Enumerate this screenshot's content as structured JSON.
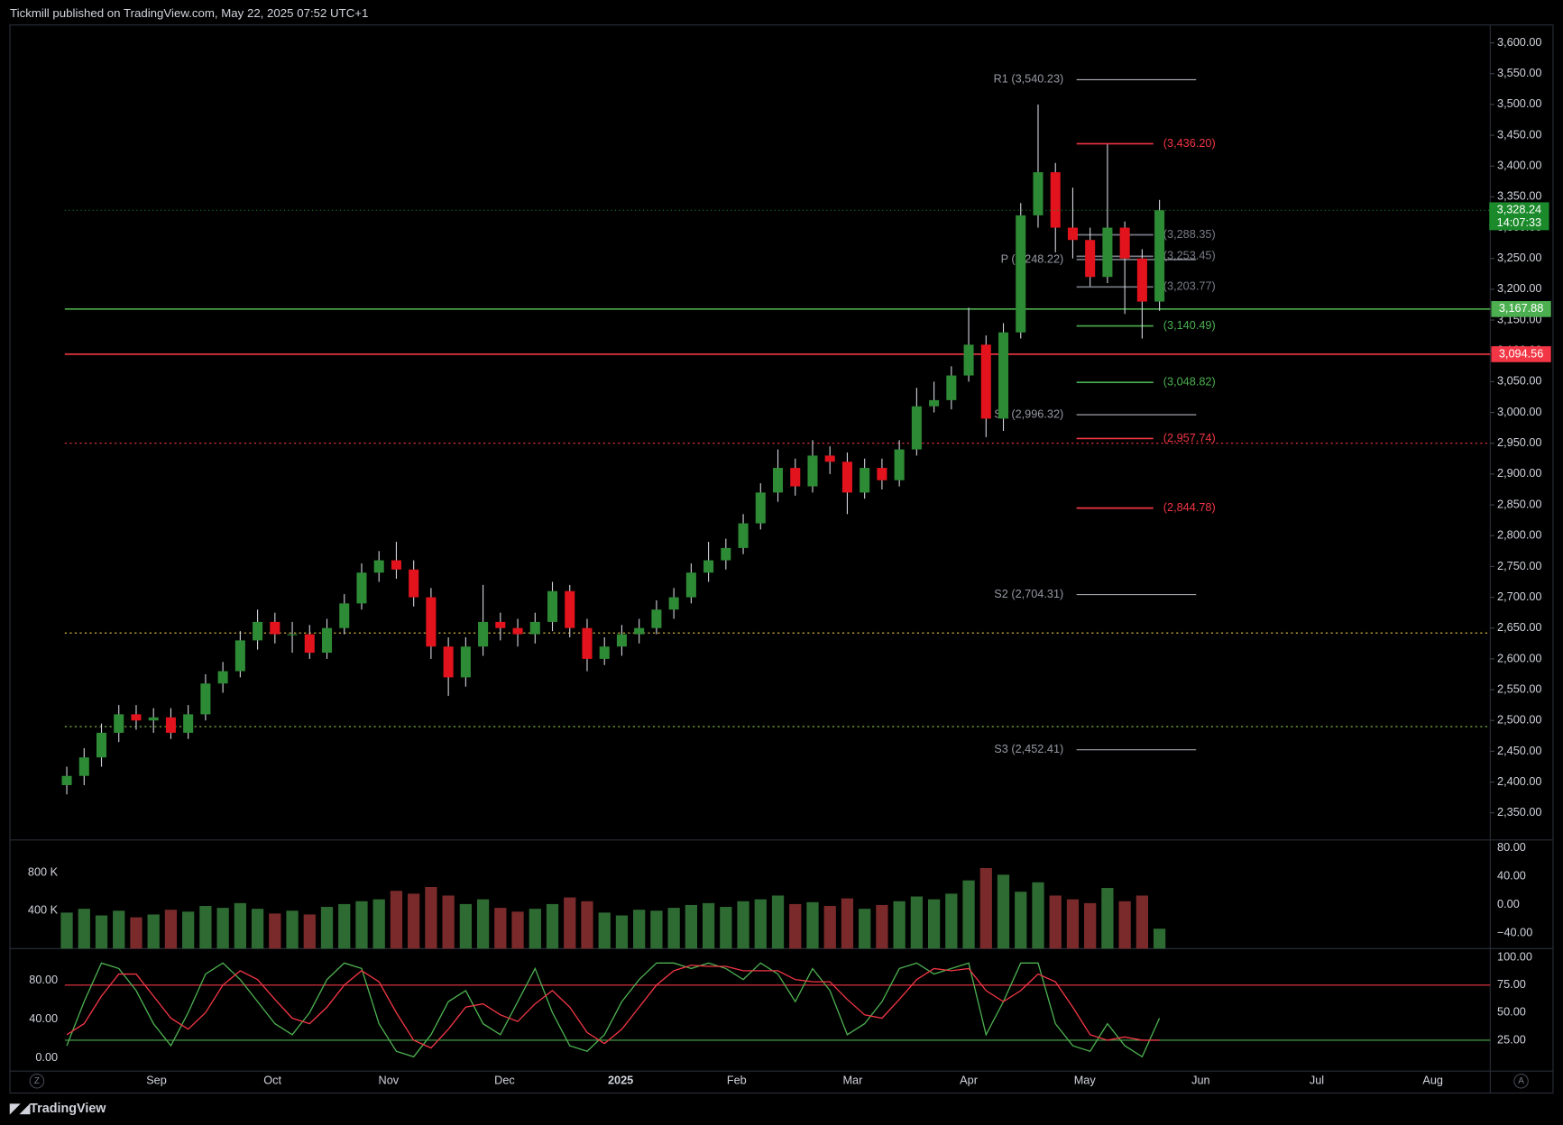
{
  "header": {
    "text": "Tickmill published on TradingView.com, May 22, 2025 07:52 UTC+1"
  },
  "footer": {
    "brand": "TradingView",
    "left_button": "Z",
    "right_button": "A"
  },
  "chart_data": [
    {
      "type": "candlestick",
      "x_axis_labels": [
        "Sep",
        "Oct",
        "Nov",
        "Dec",
        "2025",
        "Feb",
        "Mar",
        "Apr",
        "May",
        "Jun",
        "Jul",
        "Aug"
      ],
      "open": [
        2395,
        2410,
        2440,
        2480,
        2510,
        2500,
        2505,
        2480,
        2510,
        2560,
        2580,
        2630,
        2660,
        2640,
        2640,
        2610,
        2650,
        2690,
        2740,
        2760,
        2745,
        2700,
        2620,
        2570,
        2620,
        2660,
        2650,
        2640,
        2660,
        2710,
        2650,
        2600,
        2620,
        2640,
        2650,
        2680,
        2700,
        2740,
        2760,
        2780,
        2820,
        2870,
        2910,
        2880,
        2930,
        2920,
        2870,
        2910,
        2890,
        2940,
        3010,
        3020,
        3060,
        3110,
        2990,
        3130,
        3320,
        3390,
        3300,
        3280,
        3220,
        3300,
        3250,
        3180
      ],
      "high": [
        2425,
        2455,
        2495,
        2525,
        2525,
        2520,
        2520,
        2525,
        2575,
        2595,
        2645,
        2680,
        2675,
        2660,
        2655,
        2665,
        2705,
        2755,
        2775,
        2790,
        2760,
        2715,
        2635,
        2635,
        2720,
        2675,
        2665,
        2675,
        2725,
        2720,
        2665,
        2635,
        2655,
        2665,
        2695,
        2715,
        2755,
        2790,
        2795,
        2835,
        2885,
        2940,
        2925,
        2955,
        2945,
        2935,
        2925,
        2925,
        2955,
        3040,
        3050,
        3075,
        3170,
        3125,
        3145,
        3340,
        3500,
        3405,
        3365,
        3300,
        3435,
        3310,
        3265,
        3345
      ],
      "low": [
        2380,
        2395,
        2425,
        2465,
        2485,
        2480,
        2470,
        2470,
        2500,
        2545,
        2570,
        2615,
        2625,
        2610,
        2600,
        2600,
        2640,
        2680,
        2725,
        2730,
        2685,
        2600,
        2540,
        2555,
        2605,
        2630,
        2620,
        2625,
        2645,
        2635,
        2580,
        2590,
        2605,
        2625,
        2640,
        2665,
        2690,
        2725,
        2745,
        2770,
        2810,
        2855,
        2865,
        2870,
        2900,
        2835,
        2860,
        2875,
        2880,
        2930,
        3000,
        3005,
        3050,
        2960,
        2970,
        3120,
        3300,
        3260,
        3250,
        3205,
        3210,
        3160,
        3120,
        3165
      ],
      "close": [
        2410,
        2440,
        2480,
        2510,
        2500,
        2505,
        2480,
        2510,
        2560,
        2580,
        2630,
        2660,
        2640,
        2640,
        2610,
        2650,
        2690,
        2740,
        2760,
        2745,
        2700,
        2620,
        2570,
        2620,
        2660,
        2650,
        2640,
        2660,
        2710,
        2650,
        2600,
        2620,
        2640,
        2650,
        2680,
        2700,
        2740,
        2760,
        2780,
        2820,
        2870,
        2910,
        2880,
        2930,
        2920,
        2870,
        2910,
        2890,
        2940,
        3010,
        3020,
        3060,
        3110,
        2990,
        3130,
        3320,
        3390,
        3300,
        3280,
        3220,
        3300,
        3250,
        3180,
        3328.24
      ],
      "up_color": "#2e8b35",
      "down_color": "#e3131d",
      "ylim": [
        2306,
        3629
      ],
      "yticks": [
        {
          "value": 2350,
          "label": "2,350.00"
        },
        {
          "value": 2400,
          "label": "2,400.00"
        },
        {
          "value": 2450,
          "label": "2,450.00"
        },
        {
          "value": 2500,
          "label": "2,500.00"
        },
        {
          "value": 2550,
          "label": "2,550.00"
        },
        {
          "value": 2600,
          "label": "2,600.00"
        },
        {
          "value": 2650,
          "label": "2,650.00"
        },
        {
          "value": 2700,
          "label": "2,700.00"
        },
        {
          "value": 2750,
          "label": "2,750.00"
        },
        {
          "value": 2800,
          "label": "2,800.00"
        },
        {
          "value": 2850,
          "label": "2,850.00"
        },
        {
          "value": 2900,
          "label": "2,900.00"
        },
        {
          "value": 2950,
          "label": "2,950.00"
        },
        {
          "value": 3000,
          "label": "3,000.00"
        },
        {
          "value": 3050,
          "label": "3,050.00"
        },
        {
          "value": 3100,
          "label": "3,100.00"
        },
        {
          "value": 3150,
          "label": "3,150.00"
        },
        {
          "value": 3200,
          "label": "3,200.00"
        },
        {
          "value": 3250,
          "label": "3,250.00"
        },
        {
          "value": 3300,
          "label": "3,300.00"
        },
        {
          "value": 3350,
          "label": "3,350.00"
        },
        {
          "value": 3400,
          "label": "3,400.00"
        },
        {
          "value": 3450,
          "label": "3,450.00"
        },
        {
          "value": 3500,
          "label": "3,500.00"
        },
        {
          "value": 3550,
          "label": "3,550.00"
        },
        {
          "value": 3600,
          "label": "3,600.00"
        }
      ],
      "pivot_levels": [
        {
          "value": 3540.23,
          "label": "R1 (3,540.23)"
        },
        {
          "value": 3248.22,
          "label": "P (3,248.22)"
        },
        {
          "value": 2996.32,
          "label": "S1 (2,996.32)"
        },
        {
          "value": 2704.31,
          "label": "S2 (2,704.31)"
        },
        {
          "value": 2452.41,
          "label": "S3 (2,452.41)"
        }
      ],
      "target_levels": [
        {
          "value": 3436.2,
          "label": "(3,436.20)",
          "color": "#f23645"
        },
        {
          "value": 3288.35,
          "label": "(3,288.35)",
          "color": "#787b86"
        },
        {
          "value": 3253.45,
          "label": "(3,253.45)",
          "color": "#787b86"
        },
        {
          "value": 3203.77,
          "label": "(3,203.77)",
          "color": "#787b86"
        },
        {
          "value": 3140.49,
          "label": "(3,140.49)",
          "color": "#4caf50"
        },
        {
          "value": 3048.82,
          "label": "(3,048.82)",
          "color": "#4caf50"
        },
        {
          "value": 2957.74,
          "label": "(2,957.74)",
          "color": "#f23645"
        },
        {
          "value": 2844.78,
          "label": "(2,844.78)",
          "color": "#f23645"
        }
      ],
      "hlines": [
        {
          "value": 3167.88,
          "label": "3,167.88",
          "color": "#4caf50"
        },
        {
          "value": 3094.56,
          "label": "3,094.56",
          "color": "#f23645"
        },
        {
          "value": 2950,
          "color": "#f23645"
        },
        {
          "value": 2642,
          "color": "#e8c547"
        },
        {
          "value": 2490,
          "color": "#8bc34a"
        }
      ],
      "last_price": {
        "value": 3328.24,
        "label": "3,328.24",
        "countdown": "14:07:33",
        "color": "#1b8a2a"
      }
    },
    {
      "type": "bar",
      "values": [
        380000,
        420000,
        350000,
        400000,
        330000,
        360000,
        410000,
        390000,
        450000,
        430000,
        480000,
        420000,
        370000,
        400000,
        360000,
        440000,
        470000,
        500000,
        520000,
        610000,
        580000,
        650000,
        560000,
        470000,
        520000,
        430000,
        390000,
        420000,
        470000,
        540000,
        500000,
        380000,
        350000,
        410000,
        400000,
        430000,
        460000,
        480000,
        440000,
        500000,
        520000,
        560000,
        470000,
        490000,
        450000,
        530000,
        420000,
        460000,
        500000,
        550000,
        520000,
        580000,
        720000,
        850000,
        780000,
        600000,
        700000,
        560000,
        520000,
        480000,
        640000,
        500000,
        560000,
        210000
      ],
      "ylim": [
        0,
        1147000
      ],
      "yticks": [
        {
          "value": 400000,
          "label": "400 K"
        },
        {
          "value": 800000,
          "label": "800 K"
        }
      ],
      "y2lim": [
        -61.8,
        91.2
      ],
      "y2ticks": [
        {
          "value": 80,
          "label": "80.00"
        },
        {
          "value": 40,
          "label": "40.00"
        },
        {
          "value": 0,
          "label": "0.00"
        },
        {
          "value": -40,
          "label": "−40.00"
        }
      ]
    },
    {
      "type": "line",
      "series": [
        {
          "color": "#4caf50",
          "axis": "y2",
          "values": [
            20,
            60,
            95,
            90,
            70,
            40,
            20,
            50,
            85,
            95,
            80,
            60,
            40,
            30,
            50,
            80,
            95,
            90,
            40,
            15,
            10,
            30,
            60,
            70,
            40,
            30,
            60,
            90,
            50,
            20,
            15,
            30,
            60,
            80,
            95,
            95,
            90,
            95,
            90,
            80,
            95,
            85,
            60,
            90,
            70,
            30,
            40,
            60,
            90,
            95,
            85,
            90,
            95,
            30,
            60,
            95,
            95,
            40,
            20,
            15,
            40,
            20,
            10,
            45
          ]
        },
        {
          "color": "#f23645",
          "axis": "y2",
          "values": [
            30,
            40,
            65,
            85,
            85,
            65,
            45,
            35,
            50,
            75,
            88,
            80,
            62,
            45,
            40,
            55,
            75,
            88,
            78,
            50,
            25,
            18,
            35,
            55,
            58,
            48,
            42,
            58,
            70,
            55,
            32,
            22,
            35,
            55,
            75,
            88,
            93,
            92,
            92,
            88,
            88,
            88,
            80,
            78,
            78,
            62,
            48,
            45,
            62,
            80,
            90,
            88,
            90,
            70,
            60,
            70,
            85,
            78,
            55,
            30,
            25,
            28,
            25,
            25
          ]
        }
      ],
      "ylim": [
        -13.3,
        112.8
      ],
      "yticks": [
        {
          "value": 80,
          "label": "80.00"
        },
        {
          "value": 40,
          "label": "40.00"
        },
        {
          "value": 0,
          "label": "0.00"
        }
      ],
      "y2lim": [
        -3,
        108.1
      ],
      "y2ticks": [
        {
          "value": 100,
          "label": "100.00"
        },
        {
          "value": 75,
          "label": "75.00"
        },
        {
          "value": 50,
          "label": "50.00"
        },
        {
          "value": 25,
          "label": "25.00"
        }
      ]
    }
  ]
}
